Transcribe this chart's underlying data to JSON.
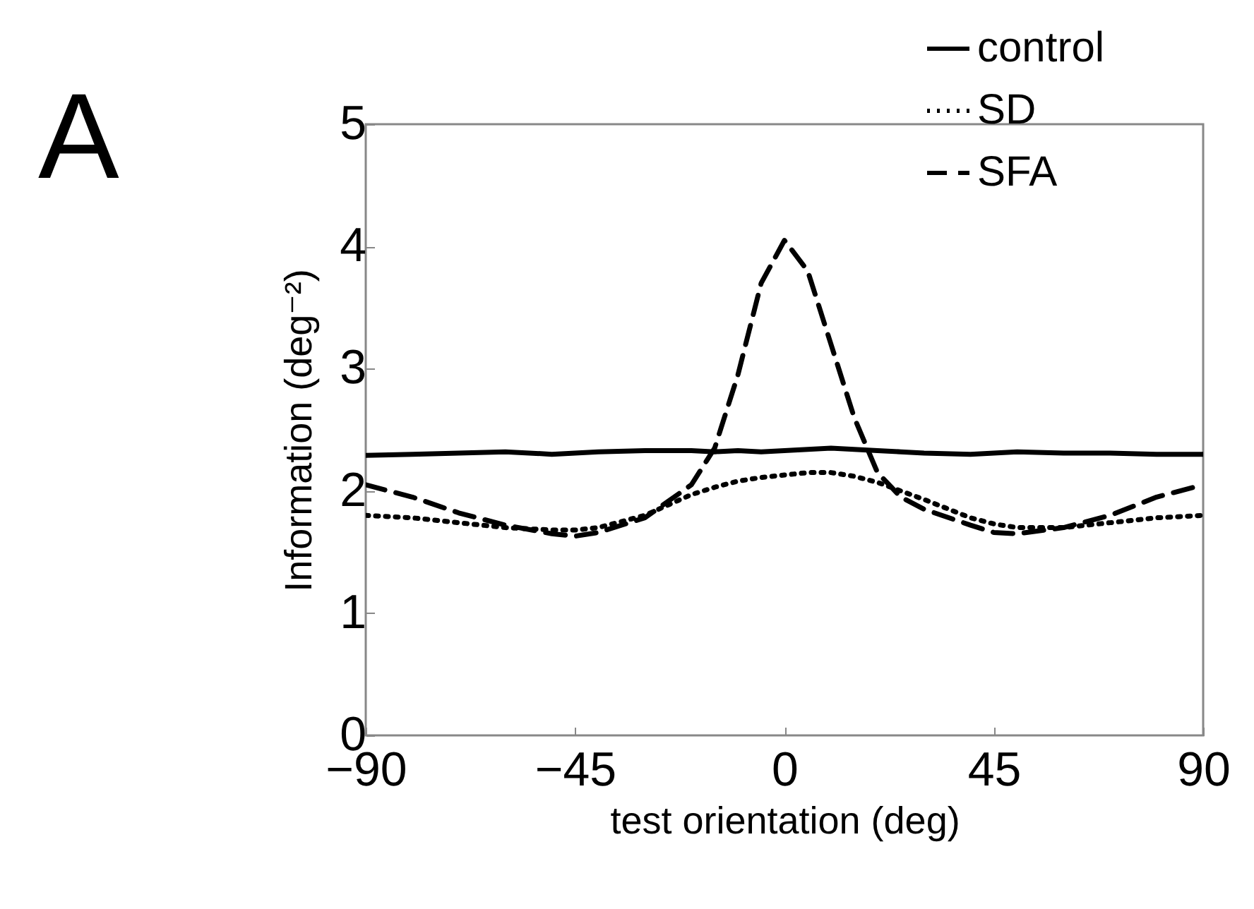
{
  "chart_data": {
    "type": "line",
    "xlabel": "test orientation (deg)",
    "ylabel": "Information (deg⁻²)",
    "annotations": [
      "A"
    ],
    "x": [
      -90,
      -80,
      -70,
      -60,
      -50,
      -45,
      -40,
      -30,
      -20,
      -15,
      -10,
      -5,
      0,
      5,
      10,
      15,
      20,
      25,
      30,
      40,
      45,
      50,
      60,
      70,
      80,
      90
    ],
    "xlim": [
      -90,
      90
    ],
    "ylim": [
      0,
      5
    ],
    "xticks": [
      -90,
      -45,
      0,
      45,
      90
    ],
    "yticks": [
      0,
      1,
      2,
      3,
      4,
      5
    ],
    "legend": "top right",
    "series": [
      {
        "name": "control",
        "color": "#000000",
        "line_style": "solid",
        "values": [
          2.29,
          2.3,
          2.31,
          2.32,
          2.3,
          2.31,
          2.32,
          2.33,
          2.33,
          2.32,
          2.33,
          2.32,
          2.33,
          2.34,
          2.35,
          2.34,
          2.33,
          2.32,
          2.31,
          2.3,
          2.31,
          2.32,
          2.31,
          2.31,
          2.3,
          2.3
        ]
      },
      {
        "name": "SD",
        "color": "#000000",
        "line_style": "dotted",
        "values": [
          1.8,
          1.78,
          1.74,
          1.7,
          1.68,
          1.68,
          1.7,
          1.8,
          1.97,
          2.03,
          2.08,
          2.11,
          2.13,
          2.15,
          2.15,
          2.12,
          2.07,
          2.0,
          1.93,
          1.78,
          1.73,
          1.7,
          1.7,
          1.74,
          1.78,
          1.8
        ]
      },
      {
        "name": "SFA",
        "color": "#000000",
        "line_style": "dashed",
        "values": [
          2.05,
          1.95,
          1.82,
          1.72,
          1.65,
          1.63,
          1.66,
          1.78,
          2.05,
          2.35,
          2.95,
          3.7,
          4.05,
          3.8,
          3.2,
          2.6,
          2.15,
          1.95,
          1.85,
          1.72,
          1.66,
          1.65,
          1.7,
          1.8,
          1.95,
          2.05
        ]
      }
    ]
  }
}
